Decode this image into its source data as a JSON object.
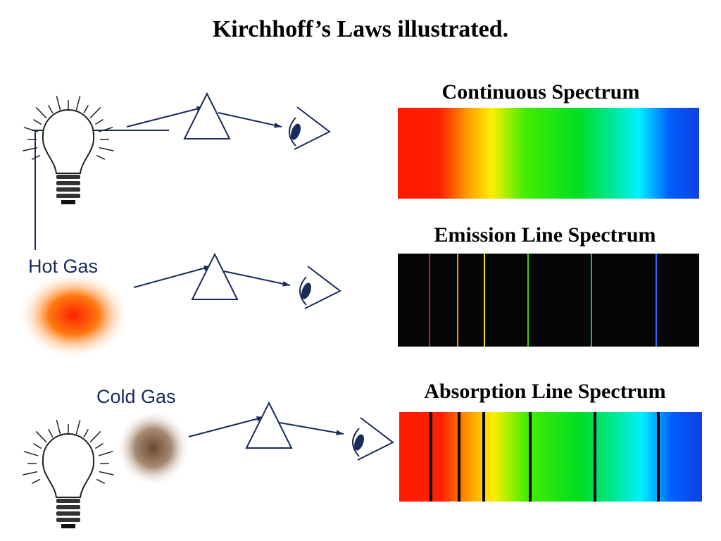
{
  "title": "Kirchhoff’s Laws illustrated.",
  "panels": [
    {
      "spectrum_label": "Continuous Spectrum"
    },
    {
      "source_label": "Hot Gas",
      "spectrum_label": "Emission Line Spectrum"
    },
    {
      "source_label": "Cold Gas",
      "spectrum_label": "Absorption Line Spectrum"
    }
  ]
}
